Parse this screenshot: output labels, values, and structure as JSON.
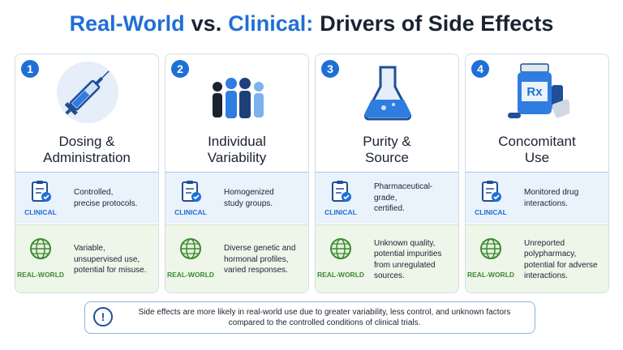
{
  "header": {
    "title": {
      "part1": "Real-World",
      "part2": "vs.",
      "part3": "Clinical:",
      "part4": "Drivers of Side Effects"
    }
  },
  "cards": [
    {
      "number": "1",
      "title": [
        "Dosing &",
        "Administration"
      ],
      "clinical": {
        "label": "CLINICAL",
        "text": [
          "Controlled,",
          "precise protocols."
        ]
      },
      "real_world": {
        "label": "REAL-WORLD",
        "text": [
          "Variable,",
          "unsupervised use,",
          "potential for misuse."
        ]
      }
    },
    {
      "number": "2",
      "title": [
        "Individual",
        "Variability"
      ],
      "clinical": {
        "label": "CLINICAL",
        "text": [
          "Homogenized",
          "study groups."
        ]
      },
      "real_world": {
        "label": "REAL-WORLD",
        "text": [
          "Diverse genetic and",
          "hormonal profiles,",
          "varied responses."
        ]
      }
    },
    {
      "number": "3",
      "title": [
        "Purity &",
        "Source"
      ],
      "clinical": {
        "label": "CLINICAL",
        "text": [
          "Pharmaceutical-grade,",
          "certified."
        ]
      },
      "real_world": {
        "label": "REAL-WORLD",
        "text": [
          "Unknown quality,",
          "potential impurities",
          "from unregulated",
          "sources."
        ]
      }
    },
    {
      "number": "4",
      "title": [
        "Concomitant",
        "Use"
      ],
      "clinical": {
        "label": "CLINICAL",
        "text": [
          "Monitored drug",
          "interactions."
        ]
      },
      "real_world": {
        "label": "REAL-WORLD",
        "text": [
          "Unreported",
          "polypharmacy,",
          "potential for adverse",
          "interactions."
        ]
      }
    }
  ],
  "note": {
    "icon": "!",
    "text": [
      "Side effects are more likely in real-world use due to greater variability, less control, and unknown factors",
      "compared to the controlled conditions of clinical trials."
    ]
  }
}
